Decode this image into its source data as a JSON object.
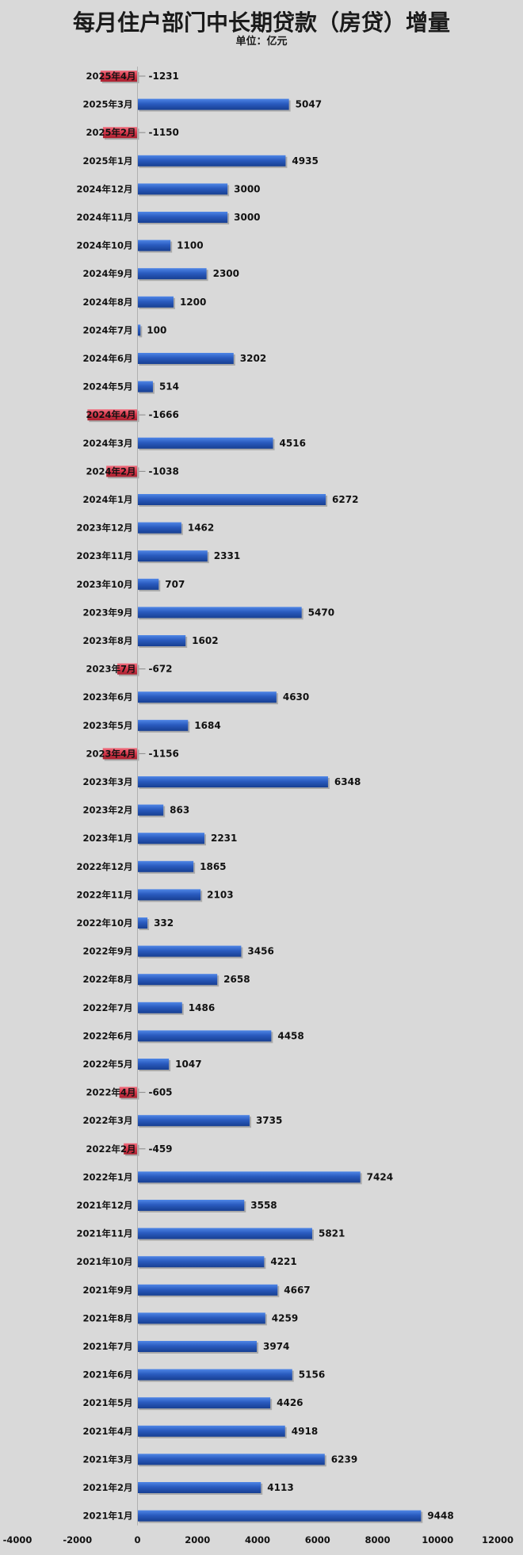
{
  "chart_data": {
    "type": "bar",
    "orientation": "horizontal",
    "title": "每月住户部门中长期贷款（房贷）增量",
    "subtitle": "单位：亿元",
    "xlim": [
      -4000,
      12000
    ],
    "xticks": [
      -4000,
      -2000,
      0,
      2000,
      4000,
      6000,
      8000,
      10000,
      12000
    ],
    "grid": false,
    "legend": "none",
    "colors": {
      "positive": "#2a5bbf",
      "negative": "#d9394d",
      "label_text": "#111111",
      "background": "#d9d9d9"
    },
    "categories": [
      "2025年4月",
      "2025年3月",
      "2025年2月",
      "2025年1月",
      "2024年12月",
      "2024年11月",
      "2024年10月",
      "2024年9月",
      "2024年8月",
      "2024年7月",
      "2024年6月",
      "2024年5月",
      "2024年4月",
      "2024年3月",
      "2024年2月",
      "2024年1月",
      "2023年12月",
      "2023年11月",
      "2023年10月",
      "2023年9月",
      "2023年8月",
      "2023年7月",
      "2023年6月",
      "2023年5月",
      "2023年4月",
      "2023年3月",
      "2023年2月",
      "2023年1月",
      "2022年12月",
      "2022年11月",
      "2022年10月",
      "2022年9月",
      "2022年8月",
      "2022年7月",
      "2022年6月",
      "2022年5月",
      "2022年4月",
      "2022年3月",
      "2022年2月",
      "2022年1月",
      "2021年12月",
      "2021年11月",
      "2021年10月",
      "2021年9月",
      "2021年8月",
      "2021年7月",
      "2021年6月",
      "2021年5月",
      "2021年4月",
      "2021年3月",
      "2021年2月",
      "2021年1月"
    ],
    "values": [
      -1231,
      5047,
      -1150,
      4935,
      3000,
      3000,
      1100,
      2300,
      1200,
      100,
      3202,
      514,
      -1666,
      4516,
      -1038,
      6272,
      1462,
      2331,
      707,
      5470,
      1602,
      -672,
      4630,
      1684,
      -1156,
      6348,
      863,
      2231,
      1865,
      2103,
      332,
      3456,
      2658,
      1486,
      4458,
      1047,
      -605,
      3735,
      -459,
      7424,
      3558,
      5821,
      4221,
      4667,
      4259,
      3974,
      5156,
      4426,
      4918,
      6239,
      4113,
      9448
    ]
  }
}
